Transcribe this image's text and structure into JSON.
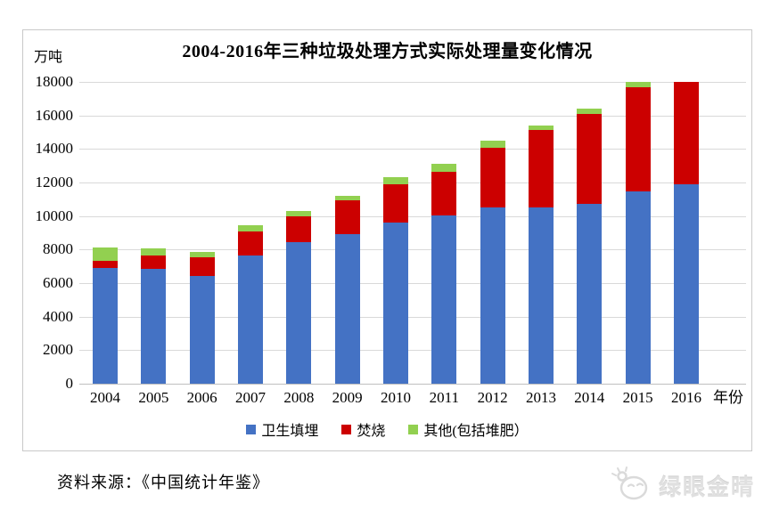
{
  "chart": {
    "title": "2004-2016年三种垃圾处理方式实际处理量变化情况",
    "unit_label": "万吨",
    "xaxis_label": "年份"
  },
  "legend": [
    {
      "name": "landfill",
      "label": "卫生填埋",
      "color": "#4472C4"
    },
    {
      "name": "incineration",
      "label": "焚烧",
      "color": "#CC0000"
    },
    {
      "name": "other",
      "label": "其他(包括堆肥）",
      "color": "#92D050"
    }
  ],
  "footer": {
    "source_text": "资料来源：《中国统计年鉴》"
  },
  "watermark": {
    "icon": "panda-face-icon",
    "text": "绿眼金晴"
  },
  "chart_data": {
    "type": "bar",
    "stacked": true,
    "title": "2004-2016年三种垃圾处理方式实际处理量变化情况",
    "xlabel": "年份",
    "ylabel": "万吨",
    "categories": [
      "2004",
      "2005",
      "2006",
      "2007",
      "2008",
      "2009",
      "2010",
      "2011",
      "2012",
      "2013",
      "2014",
      "2015",
      "2016"
    ],
    "series": [
      {
        "name": "卫生填埋",
        "color": "#4472C4",
        "values": [
          6900,
          6860,
          6410,
          7630,
          8420,
          8900,
          9600,
          10060,
          10510,
          10490,
          10740,
          11480,
          11870
        ]
      },
      {
        "name": "焚烧",
        "color": "#CC0000",
        "values": [
          450,
          790,
          1140,
          1440,
          1570,
          2020,
          2320,
          2600,
          3580,
          4630,
          5330,
          6180,
          6130
        ]
      },
      {
        "name": "其他(包括堆肥)",
        "color": "#92D050",
        "values": [
          750,
          400,
          330,
          370,
          310,
          310,
          400,
          430,
          390,
          270,
          320,
          350,
          0
        ]
      }
    ],
    "totals": [
      8100,
      8050,
      7880,
      9440,
      10300,
      11230,
      12320,
      13090,
      14480,
      15390,
      16390,
      18010,
      18000
    ],
    "ylim": [
      0,
      18000
    ],
    "yticks": [
      0,
      2000,
      4000,
      6000,
      8000,
      10000,
      12000,
      14000,
      16000,
      18000
    ],
    "grid": true,
    "legend_position": "bottom",
    "note_colors": {
      "gridline": "#d9d9d9",
      "axis": "#bfbfbf"
    }
  }
}
